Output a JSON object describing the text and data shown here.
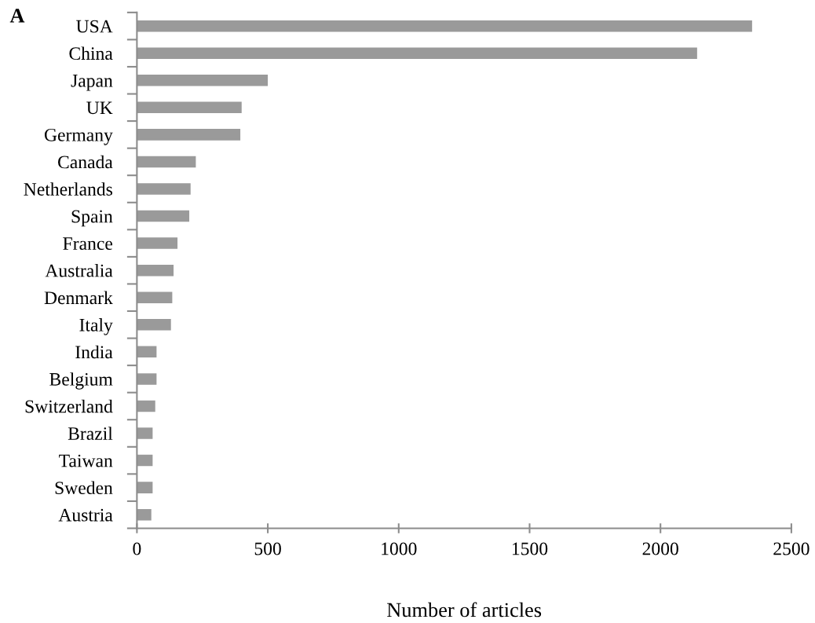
{
  "chart_data": {
    "type": "bar",
    "orientation": "horizontal",
    "title": "A",
    "xlabel": "Number of articles",
    "categories": [
      "USA",
      "China",
      "Japan",
      "UK",
      "Germany",
      "Canada",
      "Netherlands",
      "Spain",
      "France",
      "Australia",
      "Denmark",
      "Italy",
      "India",
      "Belgium",
      "Switzerland",
      "Brazil",
      "Taiwan",
      "Sweden",
      "Austria"
    ],
    "values": [
      2350,
      2140,
      500,
      400,
      395,
      225,
      205,
      200,
      155,
      140,
      135,
      130,
      75,
      75,
      70,
      60,
      60,
      60,
      55
    ],
    "color": "#9a9a9a",
    "xlim": [
      0,
      2500
    ],
    "xticks": [
      0,
      500,
      1000,
      1500,
      2000,
      2500
    ],
    "grid": false
  }
}
